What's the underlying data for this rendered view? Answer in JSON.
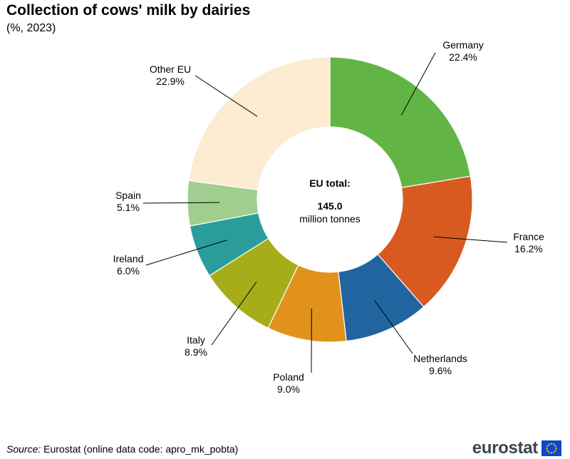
{
  "title": "Collection of cows' milk by dairies",
  "subtitle": "(%, 2023)",
  "center": {
    "label": "EU total:",
    "value": "145.0",
    "unit": "million tonnes"
  },
  "source": {
    "label": "Source:",
    "text": "Eurostat (online data code: apro_mk_pobta)"
  },
  "logo_text": "eurostat",
  "chart_data": {
    "type": "pie",
    "donut": true,
    "title": "Collection of cows' milk by dairies",
    "subtitle": "(%, 2023)",
    "unit": "%",
    "slices": [
      {
        "name": "Germany",
        "value": 22.4,
        "label": "22.4%",
        "color": "#62b544"
      },
      {
        "name": "France",
        "value": 16.2,
        "label": "16.2%",
        "color": "#d85a20"
      },
      {
        "name": "Netherlands",
        "value": 9.6,
        "label": "9.6%",
        "color": "#2165a0"
      },
      {
        "name": "Poland",
        "value": 9.0,
        "label": "9.0%",
        "color": "#e0921a"
      },
      {
        "name": "Italy",
        "value": 8.9,
        "label": "8.9%",
        "color": "#a7ad18"
      },
      {
        "name": "Ireland",
        "value": 6.0,
        "label": "6.0%",
        "color": "#2a9d9b"
      },
      {
        "name": "Spain",
        "value": 5.1,
        "label": "5.1%",
        "color": "#9fce8f"
      },
      {
        "name": "Other EU",
        "value": 22.9,
        "label": "22.9%",
        "color": "#fdebd2"
      }
    ]
  }
}
